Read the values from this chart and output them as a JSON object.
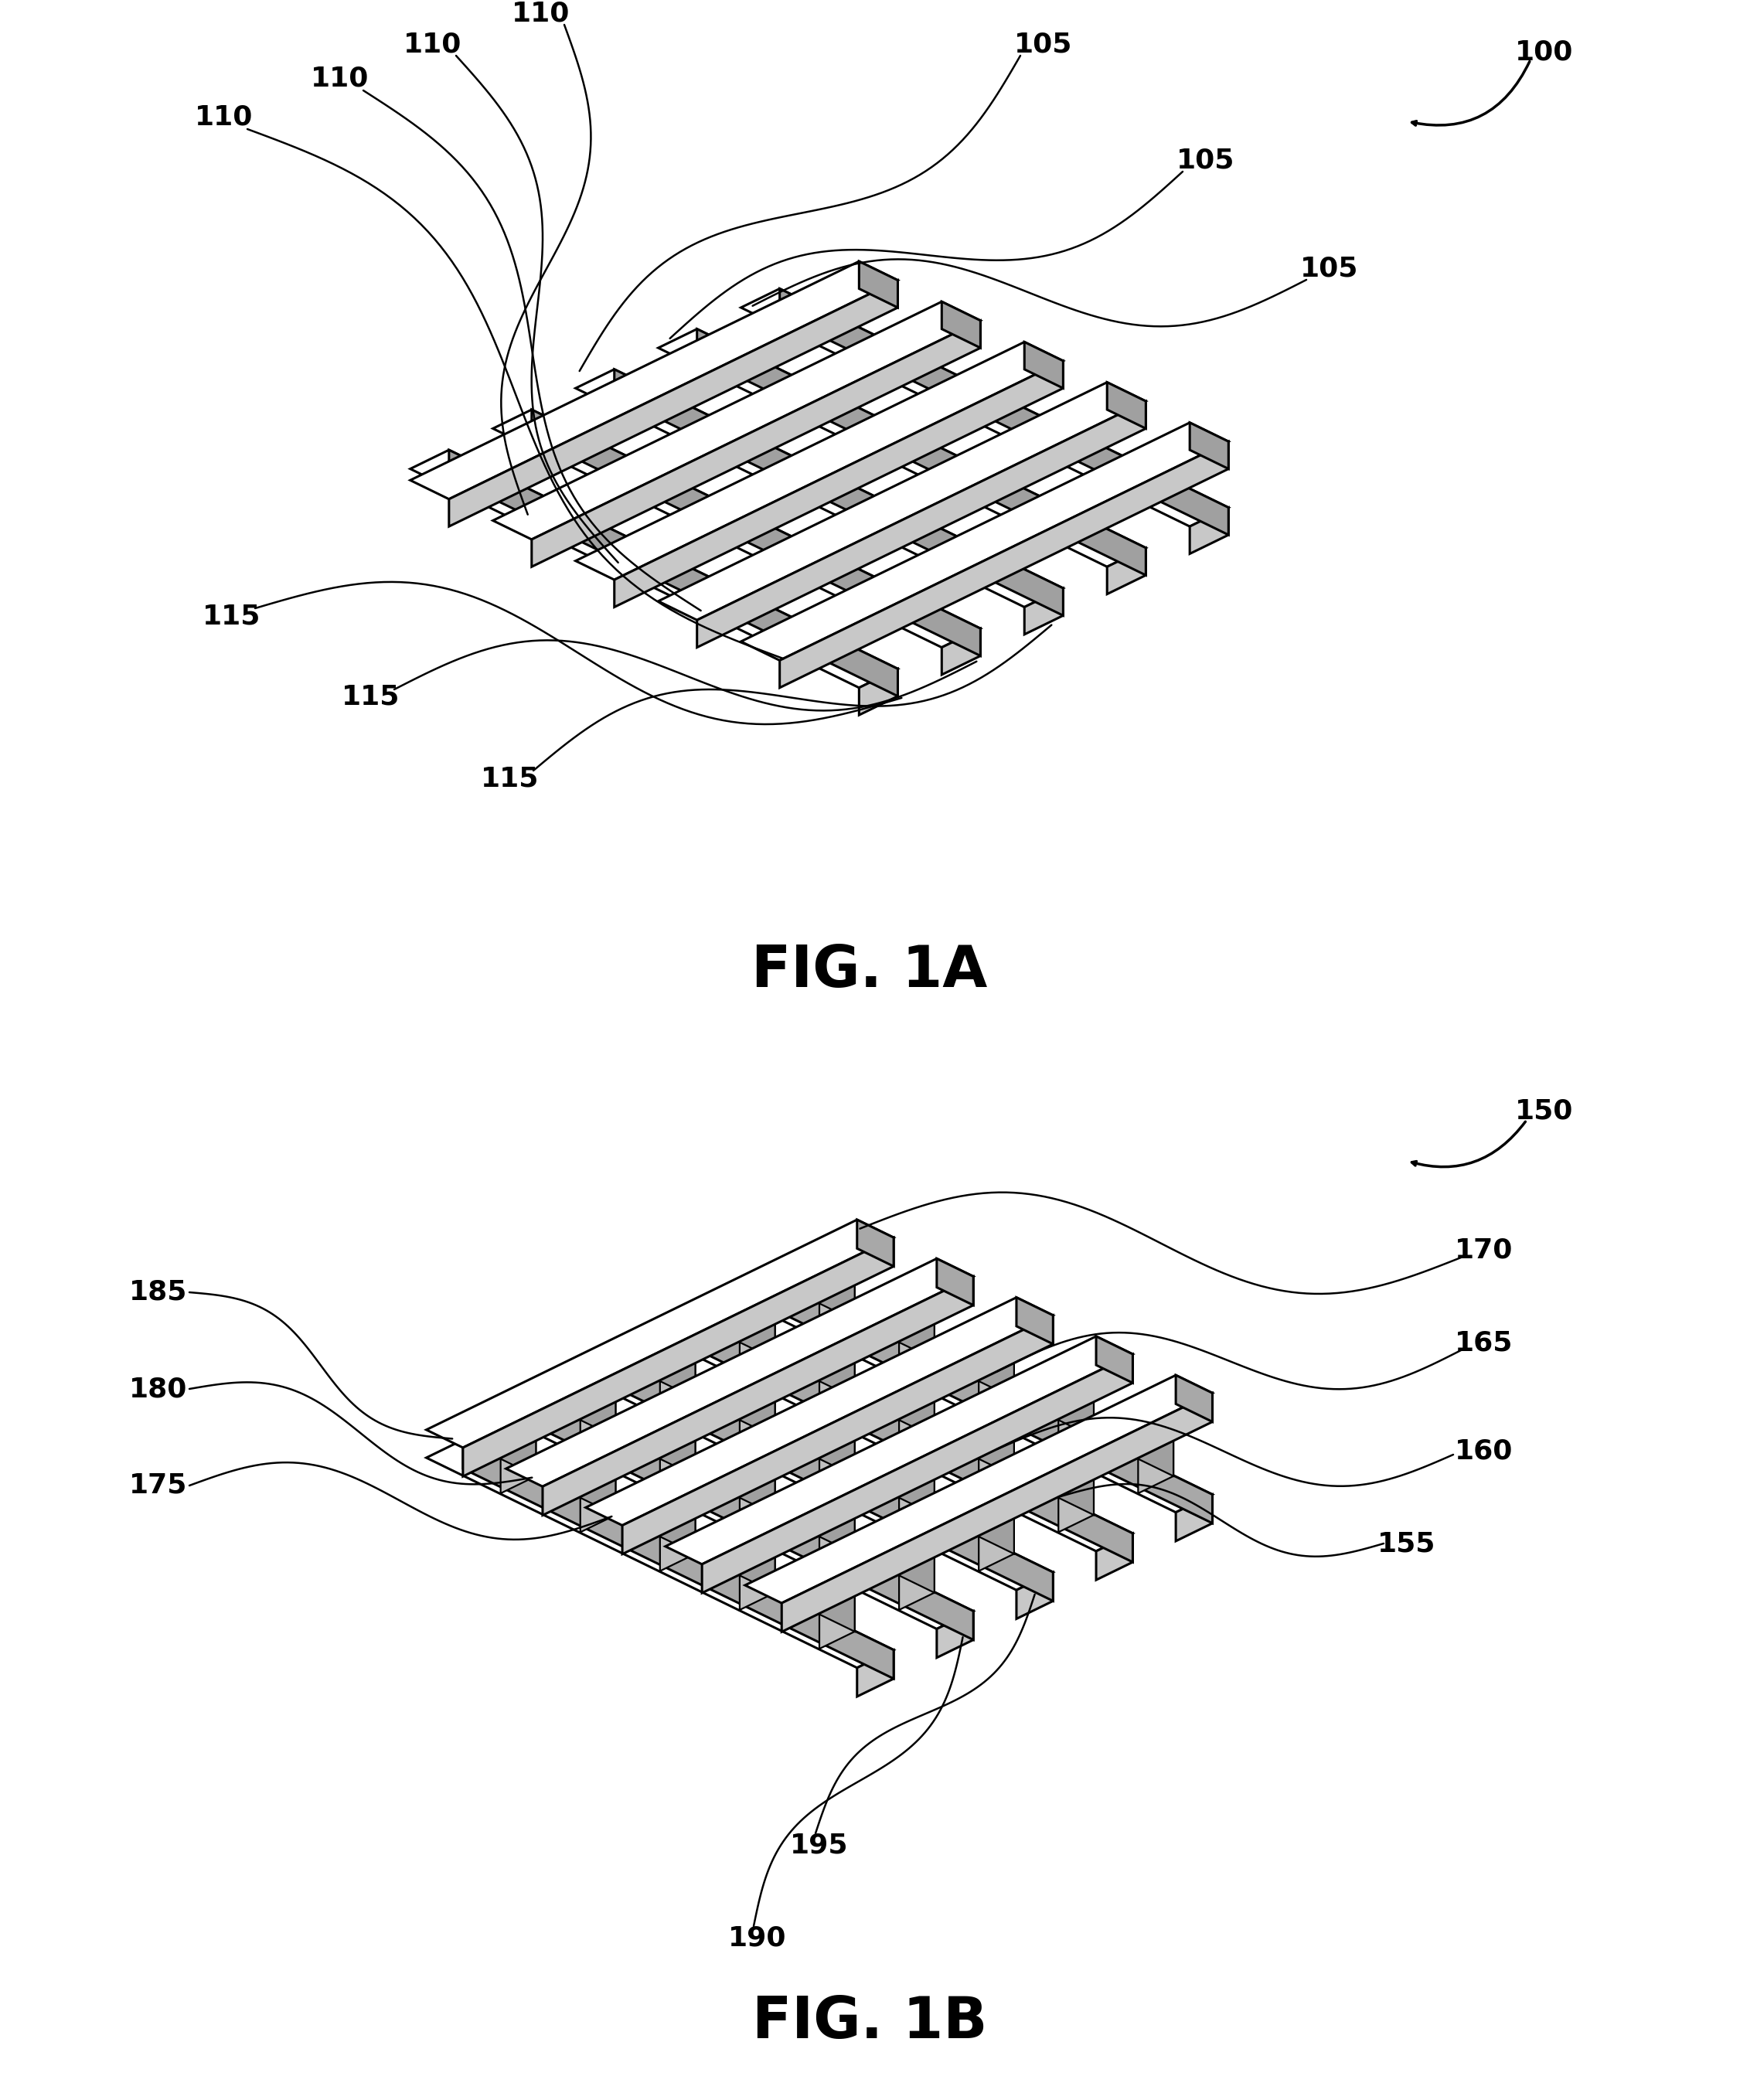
{
  "fig_width": 22.51,
  "fig_height": 27.17,
  "bg_color": "#ffffff",
  "line_color": "#000000",
  "face_top": "#ffffff",
  "face_left": "#d0d0d0",
  "face_right": "#b0b0b0",
  "label_fontsize": 26,
  "fig_label_fontsize": 54,
  "fig1a_label": "FIG. 1A",
  "fig1b_label": "FIG. 1B"
}
